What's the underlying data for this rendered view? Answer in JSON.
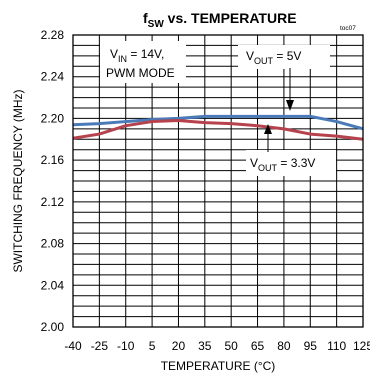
{
  "colors": {
    "series_blue": "#4a7ab8",
    "series_red": "#b5424d",
    "grid": "#000000"
  },
  "chart_data": {
    "type": "line",
    "title": {
      "prefix": "f",
      "sub": "SW",
      "rest": " vs. TEMPERATURE"
    },
    "figure_id": "toc07",
    "xlabel": "TEMPERATURE (°C)",
    "ylabel": "SWITCHING FREQUENCY (MHz)",
    "xlim": [
      -40,
      125
    ],
    "ylim": [
      2.0,
      2.28
    ],
    "x_ticks": [
      "-40",
      "-25",
      "-10",
      "5",
      "20",
      "35",
      "50",
      "65",
      "80",
      "95",
      "110",
      "125"
    ],
    "y_ticks": [
      "2.00",
      "2.04",
      "2.08",
      "2.12",
      "2.16",
      "2.20",
      "2.24",
      "2.28"
    ],
    "grid": true,
    "series": [
      {
        "name": "VOUT = 5V",
        "color_key": "series_blue",
        "x": [
          -40,
          -25,
          -10,
          5,
          20,
          35,
          50,
          65,
          80,
          95,
          110,
          125
        ],
        "y": [
          2.194,
          2.195,
          2.197,
          2.199,
          2.2,
          2.202,
          2.202,
          2.202,
          2.202,
          2.202,
          2.197,
          2.19
        ]
      },
      {
        "name": "VOUT = 3.3V",
        "color_key": "series_red",
        "x": [
          -40,
          -25,
          -10,
          5,
          20,
          35,
          50,
          65,
          80,
          95,
          110,
          125
        ],
        "y": [
          2.181,
          2.185,
          2.193,
          2.197,
          2.198,
          2.196,
          2.195,
          2.193,
          2.19,
          2.185,
          2.183,
          2.18
        ]
      }
    ],
    "annotations": {
      "condition_line1": {
        "main": "V",
        "sub": "IN",
        "rest": " = 14V,"
      },
      "condition_line2": "PWM MODE",
      "label_5v": {
        "main": "V",
        "sub": "OUT",
        "rest": " = 5V"
      },
      "label_33v": {
        "main": "V",
        "sub": "OUT",
        "rest": " = 3.3V"
      }
    }
  }
}
